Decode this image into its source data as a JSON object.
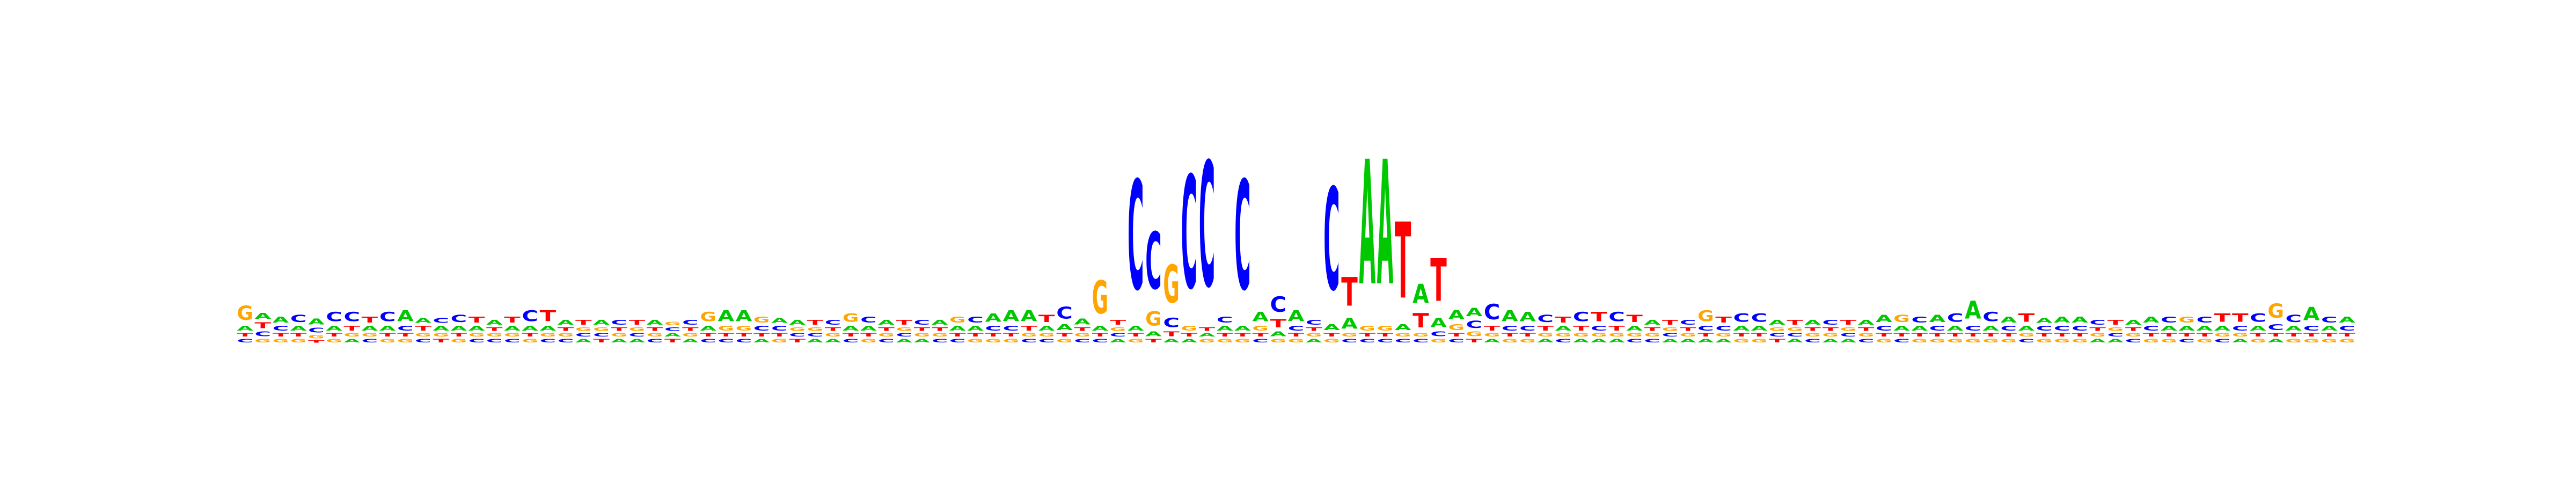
{
  "chart_data": {
    "type": "sequence-logo",
    "title": "",
    "xlabel": "",
    "ylabel": "",
    "colors": {
      "A": "#00c800",
      "C": "#0000ff",
      "G": "#ffa500",
      "T": "#ff0000"
    },
    "ylim": [
      0,
      2
    ],
    "positions": [
      {
        "G": 0.12,
        "A": 0.04,
        "C": 0.03,
        "T": 0.03
      },
      {
        "T": 0.05,
        "A": 0.05,
        "C": 0.04,
        "G": 0.03
      },
      {
        "A": 0.05,
        "C": 0.04,
        "G": 0.03,
        "T": 0.03
      },
      {
        "C": 0.06,
        "A": 0.04,
        "G": 0.03,
        "T": 0.03
      },
      {
        "A": 0.05,
        "C": 0.04,
        "G": 0.03,
        "T": 0.02
      },
      {
        "C": 0.08,
        "A": 0.04,
        "G": 0.03,
        "T": 0.03
      },
      {
        "C": 0.08,
        "T": 0.04,
        "A": 0.03,
        "G": 0.03
      },
      {
        "T": 0.05,
        "A": 0.04,
        "C": 0.03,
        "G": 0.03
      },
      {
        "C": 0.08,
        "A": 0.04,
        "G": 0.03,
        "T": 0.03
      },
      {
        "A": 0.09,
        "C": 0.04,
        "G": 0.03,
        "T": 0.03
      },
      {
        "T": 0.04,
        "A": 0.04,
        "C": 0.03,
        "G": 0.03
      },
      {
        "A": 0.04,
        "C": 0.04,
        "T": 0.03,
        "G": 0.03
      },
      {
        "C": 0.06,
        "A": 0.04,
        "G": 0.03,
        "T": 0.03
      },
      {
        "T": 0.05,
        "A": 0.04,
        "C": 0.03,
        "G": 0.03
      },
      {
        "A": 0.04,
        "C": 0.03,
        "G": 0.03,
        "T": 0.03
      },
      {
        "T": 0.05,
        "A": 0.04,
        "C": 0.03,
        "G": 0.03
      },
      {
        "C": 0.09,
        "A": 0.04,
        "G": 0.03,
        "T": 0.03
      },
      {
        "T": 0.09,
        "A": 0.04,
        "C": 0.03,
        "G": 0.03
      },
      {
        "A": 0.04,
        "C": 0.03,
        "G": 0.03,
        "T": 0.03
      },
      {
        "T": 0.04,
        "A": 0.03,
        "C": 0.03,
        "G": 0.03
      },
      {
        "A": 0.04,
        "T": 0.03,
        "C": 0.03,
        "G": 0.03
      },
      {
        "C": 0.04,
        "A": 0.03,
        "G": 0.03,
        "T": 0.03
      },
      {
        "T": 0.04,
        "A": 0.03,
        "C": 0.03,
        "G": 0.03
      },
      {
        "A": 0.04,
        "C": 0.03,
        "G": 0.03,
        "T": 0.03
      },
      {
        "T": 0.03,
        "A": 0.03,
        "C": 0.03,
        "G": 0.03
      },
      {
        "C": 0.04,
        "A": 0.03,
        "G": 0.03,
        "T": 0.03
      },
      {
        "G": 0.08,
        "A": 0.04,
        "C": 0.03,
        "T": 0.03
      },
      {
        "A": 0.09,
        "G": 0.04,
        "C": 0.03,
        "T": 0.03
      },
      {
        "A": 0.09,
        "G": 0.04,
        "C": 0.03,
        "T": 0.03
      },
      {
        "G": 0.05,
        "C": 0.04,
        "A": 0.03,
        "T": 0.03
      },
      {
        "C": 0.04,
        "A": 0.04,
        "G": 0.03,
        "T": 0.03
      },
      {
        "A": 0.04,
        "T": 0.03,
        "C": 0.03,
        "G": 0.03
      },
      {
        "T": 0.04,
        "A": 0.03,
        "C": 0.03,
        "G": 0.03
      },
      {
        "C": 0.04,
        "A": 0.03,
        "G": 0.03,
        "T": 0.03
      },
      {
        "G": 0.07,
        "A": 0.04,
        "C": 0.03,
        "T": 0.03
      },
      {
        "C": 0.05,
        "A": 0.04,
        "G": 0.03,
        "T": 0.03
      },
      {
        "A": 0.04,
        "C": 0.03,
        "G": 0.03,
        "T": 0.03
      },
      {
        "T": 0.04,
        "A": 0.03,
        "C": 0.03,
        "G": 0.03
      },
      {
        "C": 0.04,
        "A": 0.03,
        "G": 0.03,
        "T": 0.03
      },
      {
        "A": 0.04,
        "C": 0.03,
        "G": 0.03,
        "T": 0.03
      },
      {
        "G": 0.05,
        "A": 0.04,
        "C": 0.03,
        "T": 0.03
      },
      {
        "C": 0.05,
        "A": 0.04,
        "G": 0.03,
        "T": 0.03
      },
      {
        "A": 0.07,
        "C": 0.04,
        "G": 0.03,
        "T": 0.03
      },
      {
        "A": 0.09,
        "C": 0.04,
        "G": 0.03,
        "T": 0.03
      },
      {
        "A": 0.09,
        "T": 0.04,
        "C": 0.03,
        "G": 0.03
      },
      {
        "T": 0.06,
        "A": 0.04,
        "C": 0.03,
        "G": 0.03
      },
      {
        "C": 0.1,
        "A": 0.05,
        "G": 0.03,
        "T": 0.03
      },
      {
        "A": 0.05,
        "C": 0.03,
        "G": 0.03,
        "T": 0.03
      },
      {
        "G": 0.28,
        "A": 0.04,
        "C": 0.03,
        "T": 0.03
      },
      {
        "T": 0.04,
        "A": 0.03,
        "C": 0.03,
        "G": 0.03
      },
      {
        "C": 0.92,
        "A": 0.04,
        "G": 0.03,
        "T": 0.03
      },
      {
        "C": 0.48,
        "G": 0.12,
        "A": 0.04,
        "T": 0.03
      },
      {
        "G": 0.32,
        "C": 0.08,
        "T": 0.04,
        "A": 0.03
      },
      {
        "C": 0.95,
        "G": 0.04,
        "A": 0.03,
        "T": 0.03
      },
      {
        "C": 1.05,
        "G": 0.03,
        "A": 0.03,
        "T": 0.03
      },
      {
        "C": 0.05,
        "A": 0.04,
        "G": 0.03,
        "T": 0.03
      },
      {
        "C": 0.92,
        "A": 0.04,
        "G": 0.03,
        "T": 0.03
      },
      {
        "A": 0.08,
        "G": 0.04,
        "C": 0.03,
        "T": 0.03
      },
      {
        "C": 0.13,
        "T": 0.07,
        "A": 0.04,
        "G": 0.03
      },
      {
        "A": 0.09,
        "C": 0.04,
        "G": 0.03,
        "T": 0.03
      },
      {
        "C": 0.04,
        "A": 0.03,
        "G": 0.03,
        "T": 0.03
      },
      {
        "C": 0.86,
        "A": 0.05,
        "G": 0.03,
        "T": 0.03
      },
      {
        "T": 0.24,
        "A": 0.09,
        "C": 0.03,
        "G": 0.03
      },
      {
        "A": 1.05,
        "G": 0.04,
        "C": 0.03,
        "T": 0.03
      },
      {
        "A": 1.05,
        "G": 0.04,
        "C": 0.03,
        "T": 0.03
      },
      {
        "T": 0.64,
        "A": 0.05,
        "C": 0.03,
        "G": 0.03
      },
      {
        "A": 0.16,
        "T": 0.12,
        "C": 0.03,
        "G": 0.03
      },
      {
        "T": 0.36,
        "A": 0.08,
        "C": 0.04,
        "G": 0.03
      },
      {
        "A": 0.08,
        "G": 0.05,
        "C": 0.03,
        "T": 0.03
      },
      {
        "A": 0.07,
        "C": 0.06,
        "G": 0.04,
        "T": 0.03
      },
      {
        "C": 0.13,
        "T": 0.04,
        "A": 0.03,
        "G": 0.03
      },
      {
        "A": 0.09,
        "C": 0.04,
        "G": 0.03,
        "T": 0.03
      },
      {
        "A": 0.08,
        "C": 0.04,
        "G": 0.03,
        "T": 0.03
      },
      {
        "C": 0.06,
        "T": 0.04,
        "A": 0.03,
        "G": 0.03
      },
      {
        "T": 0.05,
        "A": 0.04,
        "C": 0.03,
        "G": 0.03
      },
      {
        "C": 0.08,
        "T": 0.04,
        "A": 0.03,
        "G": 0.03
      },
      {
        "T": 0.08,
        "C": 0.04,
        "A": 0.03,
        "G": 0.03
      },
      {
        "C": 0.08,
        "T": 0.04,
        "A": 0.03,
        "G": 0.03
      },
      {
        "T": 0.06,
        "A": 0.04,
        "C": 0.03,
        "G": 0.03
      },
      {
        "A": 0.04,
        "C": 0.03,
        "G": 0.03,
        "T": 0.03
      },
      {
        "T": 0.04,
        "A": 0.03,
        "C": 0.03,
        "G": 0.03
      },
      {
        "C": 0.04,
        "A": 0.03,
        "G": 0.03,
        "T": 0.03
      },
      {
        "G": 0.09,
        "C": 0.04,
        "A": 0.03,
        "T": 0.03
      },
      {
        "T": 0.05,
        "C": 0.04,
        "A": 0.03,
        "G": 0.03
      },
      {
        "C": 0.07,
        "A": 0.04,
        "G": 0.03,
        "T": 0.03
      },
      {
        "C": 0.07,
        "A": 0.04,
        "G": 0.03,
        "T": 0.03
      },
      {
        "A": 0.04,
        "T": 0.03,
        "C": 0.03,
        "G": 0.03
      },
      {
        "T": 0.04,
        "A": 0.03,
        "C": 0.03,
        "G": 0.03
      },
      {
        "A": 0.04,
        "C": 0.03,
        "G": 0.03,
        "T": 0.03
      },
      {
        "C": 0.04,
        "A": 0.03,
        "G": 0.03,
        "T": 0.03
      },
      {
        "T": 0.04,
        "A": 0.03,
        "C": 0.03,
        "G": 0.03
      },
      {
        "A": 0.04,
        "C": 0.03,
        "G": 0.03,
        "T": 0.03
      },
      {
        "A": 0.06,
        "C": 0.04,
        "G": 0.03,
        "T": 0.03
      },
      {
        "G": 0.06,
        "A": 0.04,
        "C": 0.03,
        "T": 0.03
      },
      {
        "C": 0.05,
        "A": 0.04,
        "G": 0.03,
        "T": 0.03
      },
      {
        "A": 0.06,
        "C": 0.04,
        "G": 0.03,
        "T": 0.03
      },
      {
        "C": 0.07,
        "A": 0.04,
        "G": 0.03,
        "T": 0.03
      },
      {
        "A": 0.15,
        "C": 0.04,
        "G": 0.03,
        "T": 0.03
      },
      {
        "C": 0.08,
        "A": 0.04,
        "G": 0.03,
        "T": 0.03
      },
      {
        "A": 0.05,
        "C": 0.04,
        "G": 0.03,
        "T": 0.03
      },
      {
        "T": 0.07,
        "A": 0.04,
        "C": 0.03,
        "G": 0.03
      },
      {
        "C": 0.04,
        "A": 0.04,
        "G": 0.03,
        "T": 0.03
      },
      {
        "A": 0.05,
        "C": 0.04,
        "G": 0.03,
        "T": 0.03
      },
      {
        "A": 0.05,
        "C": 0.04,
        "G": 0.03,
        "T": 0.03
      },
      {
        "C": 0.04,
        "A": 0.03,
        "G": 0.03,
        "T": 0.03
      },
      {
        "T": 0.04,
        "A": 0.03,
        "C": 0.03,
        "G": 0.03
      },
      {
        "A": 0.04,
        "C": 0.03,
        "G": 0.03,
        "T": 0.03
      },
      {
        "A": 0.05,
        "C": 0.04,
        "G": 0.03,
        "T": 0.03
      },
      {
        "C": 0.05,
        "A": 0.04,
        "G": 0.03,
        "T": 0.03
      },
      {
        "G": 0.05,
        "A": 0.04,
        "C": 0.03,
        "T": 0.03
      },
      {
        "C": 0.05,
        "A": 0.04,
        "G": 0.03,
        "T": 0.03
      },
      {
        "T": 0.07,
        "A": 0.04,
        "C": 0.03,
        "G": 0.03
      },
      {
        "T": 0.07,
        "C": 0.04,
        "A": 0.03,
        "G": 0.03
      },
      {
        "C": 0.07,
        "A": 0.04,
        "G": 0.03,
        "T": 0.03
      },
      {
        "G": 0.12,
        "C": 0.05,
        "A": 0.03,
        "T": 0.03
      },
      {
        "C": 0.06,
        "A": 0.04,
        "G": 0.03,
        "T": 0.03
      },
      {
        "A": 0.11,
        "C": 0.04,
        "G": 0.03,
        "T": 0.03
      },
      {
        "C": 0.05,
        "A": 0.04,
        "G": 0.03,
        "T": 0.03
      },
      {
        "A": 0.05,
        "C": 0.04,
        "G": 0.03,
        "T": 0.03
      }
    ]
  }
}
